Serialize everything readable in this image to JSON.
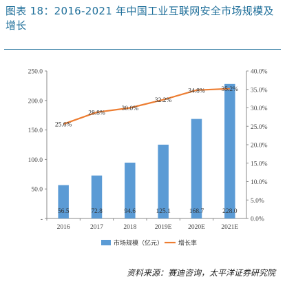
{
  "header": {
    "title": "图表 18：2016-2021 年中国工业互联网安全市场规模及增长"
  },
  "source": "资料来源：赛迪咨询，太平洋证券研究院",
  "chart_data": {
    "type": "bar+line",
    "categories": [
      "2016",
      "2017",
      "2018",
      "2019E",
      "2020E",
      "2021E"
    ],
    "series": [
      {
        "name": "市场规模（亿元）",
        "kind": "bar",
        "axis": "left",
        "color": "#5b9bd5",
        "values": [
          56.5,
          72.8,
          94.6,
          125.1,
          168.7,
          228.0
        ],
        "labels": [
          "56.5",
          "72.8",
          "94.6",
          "125.1",
          "168.7",
          "228.0"
        ]
      },
      {
        "name": "增长率",
        "kind": "line",
        "axis": "right",
        "color": "#ed7d31",
        "values": [
          25.6,
          28.8,
          30.0,
          32.2,
          34.8,
          35.2
        ],
        "labels": [
          "25.6%",
          "28.8%",
          "30.0%",
          "32.2%",
          "34.8%",
          "35.2%"
        ]
      }
    ],
    "left_axis": {
      "min": 0,
      "max": 250,
      "ticks": [
        "-",
        "50.0",
        "100.0",
        "150.0",
        "200.0",
        "250.0"
      ]
    },
    "right_axis": {
      "min": 0,
      "max": 40,
      "unit": "%",
      "ticks": [
        "0.0%",
        "5.0%",
        "10.0%",
        "15.0%",
        "20.0%",
        "25.0%",
        "30.0%",
        "35.0%",
        "40.0%"
      ]
    },
    "legend_position": "bottom",
    "grid": false
  }
}
